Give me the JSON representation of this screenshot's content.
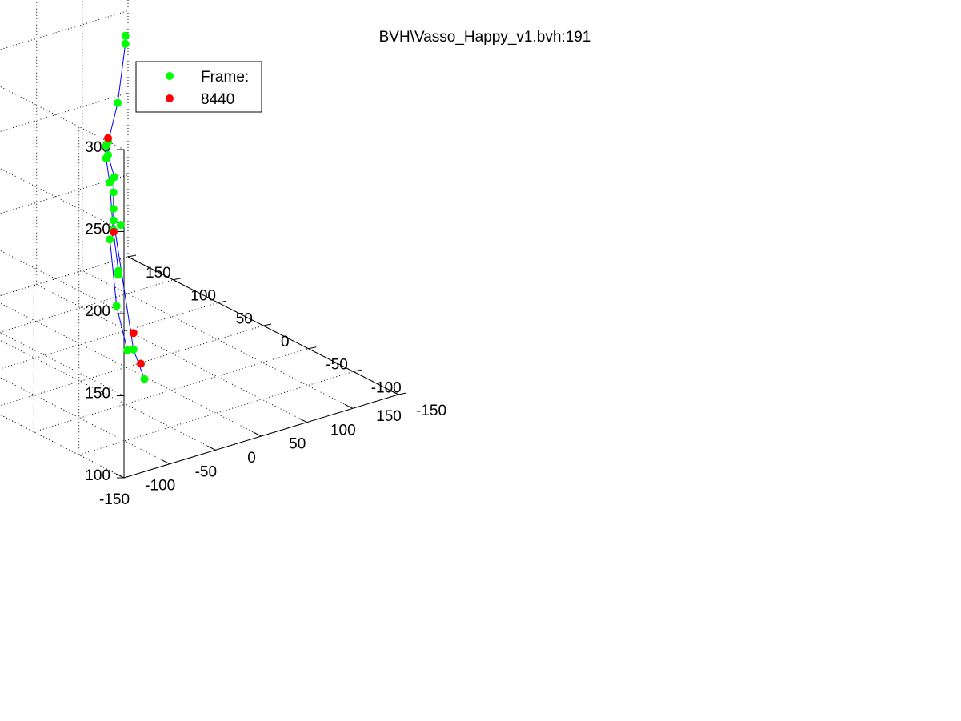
{
  "title": "BVH\\Vasso_Happy_v1.bvh:191",
  "legend": {
    "position": "top-left",
    "entries": [
      {
        "label": "Frame:",
        "color": "#00ff00"
      },
      {
        "label": "8440",
        "color": "#ff0000"
      }
    ]
  },
  "colors": {
    "joint": "#00ff00",
    "highlight": "#ff0000",
    "bone": "#0000ff"
  },
  "chart_data": {
    "type": "scatter",
    "projection": "3d",
    "title": "BVH\\Vasso_Happy_v1.bvh:191",
    "xlabel": "",
    "ylabel": "",
    "zlabel": "",
    "xlim": [
      -150,
      150
    ],
    "ylim": [
      -150,
      150
    ],
    "zlim": [
      100,
      300
    ],
    "grid": true,
    "x_ticks": [
      "-150",
      "-100",
      "-50",
      "0",
      "50",
      "100",
      "150"
    ],
    "y_ticks": [
      "-150",
      "-100",
      "-50",
      "0",
      "50",
      "100",
      "150"
    ],
    "z_ticks": [
      "100",
      "150",
      "200",
      "250",
      "300"
    ],
    "series": [
      {
        "name": "Frame:",
        "color": "#00ff00",
        "points": [
          {
            "x": 88,
            "y": 90,
            "z": 262
          },
          {
            "x": 86,
            "y": 88,
            "z": 258
          },
          {
            "x": 52,
            "y": 62,
            "z": 235
          },
          {
            "x": 20,
            "y": 40,
            "z": 223
          },
          {
            "x": 4,
            "y": 24,
            "z": 222
          },
          {
            "x": 2,
            "y": 24,
            "z": 228
          },
          {
            "x": -4,
            "y": 18,
            "z": 223
          },
          {
            "x": -10,
            "y": 8,
            "z": 212
          },
          {
            "x": -22,
            "y": -8,
            "z": 190
          },
          {
            "x": -30,
            "y": -22,
            "z": 170
          },
          {
            "x": -40,
            "y": -32,
            "z": 172
          },
          {
            "x": 5,
            "y": 18,
            "z": 210
          },
          {
            "x": 6,
            "y": 20,
            "z": 200
          },
          {
            "x": 6,
            "y": 20,
            "z": 190
          },
          {
            "x": 8,
            "y": 22,
            "z": 182
          },
          {
            "x": 18,
            "y": 24,
            "z": 177
          },
          {
            "x": 2,
            "y": 20,
            "z": 172
          },
          {
            "x": -30,
            "y": -20,
            "z": 148
          },
          {
            "x": -38,
            "y": -40,
            "z": 128
          },
          {
            "x": 18,
            "y": 10,
            "z": 105
          },
          {
            "x": 30,
            "y": 10,
            "z": 85
          }
        ]
      },
      {
        "name": "8440",
        "color": "#ff0000",
        "points": [
          {
            "x": 0,
            "y": 20,
            "z": 234
          },
          {
            "x": 8,
            "y": 22,
            "z": 175
          },
          {
            "x": 18,
            "y": 10,
            "z": 115
          },
          {
            "x": 26,
            "y": 10,
            "z": 95
          }
        ]
      }
    ],
    "bones": [
      [
        0,
        1
      ],
      [
        1,
        2
      ],
      [
        2,
        3
      ],
      [
        3,
        4
      ],
      [
        4,
        5
      ],
      [
        5,
        6
      ],
      [
        6,
        7
      ],
      [
        7,
        8
      ],
      [
        8,
        9
      ],
      [
        9,
        10
      ],
      [
        4,
        11
      ],
      [
        11,
        12
      ],
      [
        12,
        13
      ],
      [
        13,
        14
      ],
      [
        14,
        15
      ],
      [
        15,
        16
      ],
      [
        16,
        17
      ],
      [
        17,
        18
      ],
      [
        14,
        19
      ],
      [
        19,
        20
      ]
    ]
  }
}
